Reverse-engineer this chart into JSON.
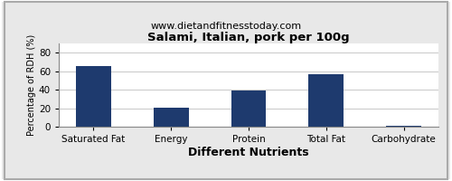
{
  "title": "Salami, Italian, pork per 100g",
  "subtitle": "www.dietandfitnesstoday.com",
  "xlabel": "Different Nutrients",
  "ylabel": "Percentage of RDH (%)",
  "categories": [
    "Saturated Fat",
    "Energy",
    "Protein",
    "Total Fat",
    "Carbohydrate"
  ],
  "values": [
    66,
    21,
    39,
    57,
    1
  ],
  "bar_color": "#1e3a6e",
  "ylim": [
    0,
    90
  ],
  "yticks": [
    0,
    20,
    40,
    60,
    80
  ],
  "background_color": "#e8e8e8",
  "plot_bg_color": "#ffffff",
  "title_fontsize": 9.5,
  "subtitle_fontsize": 8,
  "xlabel_fontsize": 9,
  "ylabel_fontsize": 7,
  "tick_fontsize": 7.5,
  "xlabel_fontweight": "bold",
  "grid_color": "#cccccc",
  "border_color": "#aaaaaa",
  "bar_width": 0.45
}
